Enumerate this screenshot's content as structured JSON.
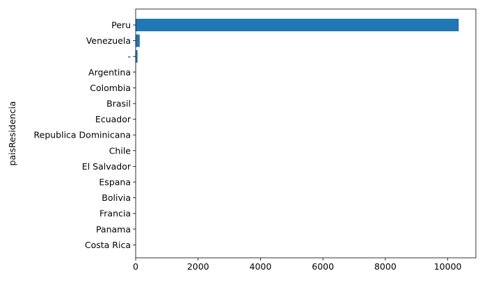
{
  "chart_data": {
    "type": "bar",
    "orientation": "horizontal",
    "title": "",
    "xlabel": "",
    "ylabel": "paisResidencia",
    "categories": [
      "Peru",
      "Venezuela",
      "-",
      "Argentina",
      "Colombia",
      "Brasil",
      "Ecuador",
      "Republica Dominicana",
      "Chile",
      "El Salvador",
      "Espana",
      "Bolivia",
      "Francia",
      "Panama",
      "Costa Rica"
    ],
    "values": [
      10350,
      130,
      60,
      8,
      6,
      5,
      4,
      3,
      3,
      2,
      2,
      1,
      1,
      1,
      1
    ],
    "xlim": [
      0,
      10900
    ],
    "xticks": [
      0,
      2000,
      4000,
      6000,
      8000,
      10000
    ],
    "grid": false,
    "bar_color": "#1f77b4"
  }
}
